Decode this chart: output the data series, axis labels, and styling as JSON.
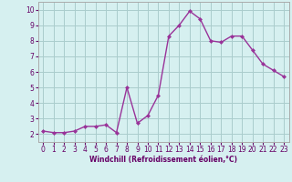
{
  "x": [
    0,
    1,
    2,
    3,
    4,
    5,
    6,
    7,
    8,
    9,
    10,
    11,
    12,
    13,
    14,
    15,
    16,
    17,
    18,
    19,
    20,
    21,
    22,
    23
  ],
  "y": [
    2.2,
    2.1,
    2.1,
    2.2,
    2.5,
    2.5,
    2.6,
    2.1,
    5.0,
    2.7,
    3.2,
    4.5,
    8.3,
    9.0,
    9.9,
    9.4,
    8.0,
    7.9,
    8.3,
    8.3,
    7.4,
    6.5,
    6.1,
    5.7
  ],
  "line_color": "#993399",
  "marker": "D",
  "marker_size": 2,
  "bg_color": "#d6f0f0",
  "grid_color": "#aacccc",
  "xlabel": "Windchill (Refroidissement éolien,°C)",
  "xlim": [
    -0.5,
    23.5
  ],
  "ylim": [
    1.5,
    10.5
  ],
  "yticks": [
    2,
    3,
    4,
    5,
    6,
    7,
    8,
    9,
    10
  ],
  "xticks": [
    0,
    1,
    2,
    3,
    4,
    5,
    6,
    7,
    8,
    9,
    10,
    11,
    12,
    13,
    14,
    15,
    16,
    17,
    18,
    19,
    20,
    21,
    22,
    23
  ],
  "tick_fontsize": 5.5,
  "xlabel_fontsize": 5.5,
  "xlabel_color": "#660066",
  "spine_color": "#aaaaaa"
}
